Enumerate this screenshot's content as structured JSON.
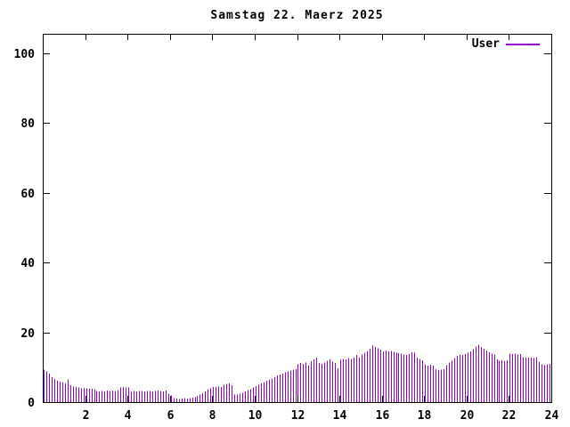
{
  "title": "Samstag 22. Maerz 2025",
  "legend": {
    "label": "User",
    "color": "#9400D3"
  },
  "colors": {
    "background": "#ffffff",
    "border": "#000000",
    "text": "#000000",
    "accent": "#9400D3"
  },
  "chart_data": {
    "type": "bar",
    "style": "impulses",
    "title": "Samstag 22. Maerz 2025",
    "xlabel": "",
    "ylabel": "",
    "xlim": [
      0,
      24
    ],
    "ylim": [
      0,
      105.5
    ],
    "grid": false,
    "legend_position": "top-right",
    "x_ticks": [
      2,
      4,
      6,
      8,
      10,
      12,
      14,
      16,
      18,
      20,
      22,
      24
    ],
    "y_ticks": [
      0,
      20,
      40,
      60,
      80,
      100
    ],
    "x_start_hour": 0,
    "x_step_hours": 0.125,
    "series": [
      {
        "name": "User",
        "color": "#9400D3",
        "values": [
          9.3,
          8.8,
          8.2,
          7.2,
          6.6,
          6.1,
          5.9,
          5.8,
          5.4,
          6.5,
          4.8,
          4.5,
          4.3,
          4.2,
          4.0,
          3.9,
          3.9,
          3.8,
          3.8,
          3.7,
          3.2,
          3.1,
          3.2,
          3.1,
          3.3,
          3.2,
          3.3,
          3.2,
          3.4,
          4.2,
          4.3,
          4.2,
          4.2,
          2.9,
          3.2,
          3.1,
          3.2,
          3.2,
          3.1,
          3.2,
          3.2,
          3.1,
          3.2,
          3.3,
          3.2,
          3.1,
          3.3,
          2.4,
          1.9,
          1.2,
          1.0,
          0.9,
          1.0,
          1.1,
          1.0,
          1.2,
          1.3,
          1.4,
          1.8,
          2.2,
          2.6,
          3.0,
          3.7,
          4.0,
          4.3,
          4.4,
          4.5,
          4.4,
          5.0,
          5.2,
          5.3,
          4.9,
          2.2,
          2.2,
          2.4,
          2.7,
          3.0,
          3.4,
          3.7,
          4.2,
          4.6,
          5.0,
          5.3,
          5.8,
          6.1,
          6.4,
          6.8,
          7.1,
          7.6,
          7.9,
          8.2,
          8.6,
          8.8,
          9.0,
          9.3,
          9.4,
          10.9,
          11.2,
          11.0,
          11.4,
          10.5,
          11.7,
          12.3,
          12.8,
          11.2,
          11.0,
          11.3,
          11.8,
          12.3,
          11.6,
          11.2,
          9.7,
          12.1,
          12.4,
          12.2,
          12.6,
          12.4,
          12.7,
          13.5,
          12.8,
          13.6,
          14.2,
          14.6,
          15.3,
          16.2,
          15.8,
          15.4,
          15.0,
          14.6,
          14.8,
          14.5,
          14.7,
          14.4,
          14.2,
          14.0,
          13.9,
          13.7,
          13.5,
          13.8,
          14.3,
          14.1,
          12.8,
          12.4,
          12.0,
          10.8,
          10.5,
          10.7,
          10.4,
          9.4,
          9.2,
          9.3,
          9.5,
          10.6,
          11.3,
          11.9,
          12.6,
          13.3,
          13.6,
          13.5,
          13.8,
          14.2,
          14.6,
          15.2,
          16.0,
          16.4,
          15.8,
          15.3,
          14.8,
          14.3,
          13.9,
          13.6,
          12.2,
          11.9,
          12.0,
          11.8,
          12.0,
          13.9,
          13.8,
          13.9,
          13.7,
          13.8,
          12.9,
          12.8,
          12.7,
          12.8,
          12.6,
          12.9,
          11.5,
          10.8,
          10.7,
          10.9,
          11.0
        ]
      }
    ]
  }
}
